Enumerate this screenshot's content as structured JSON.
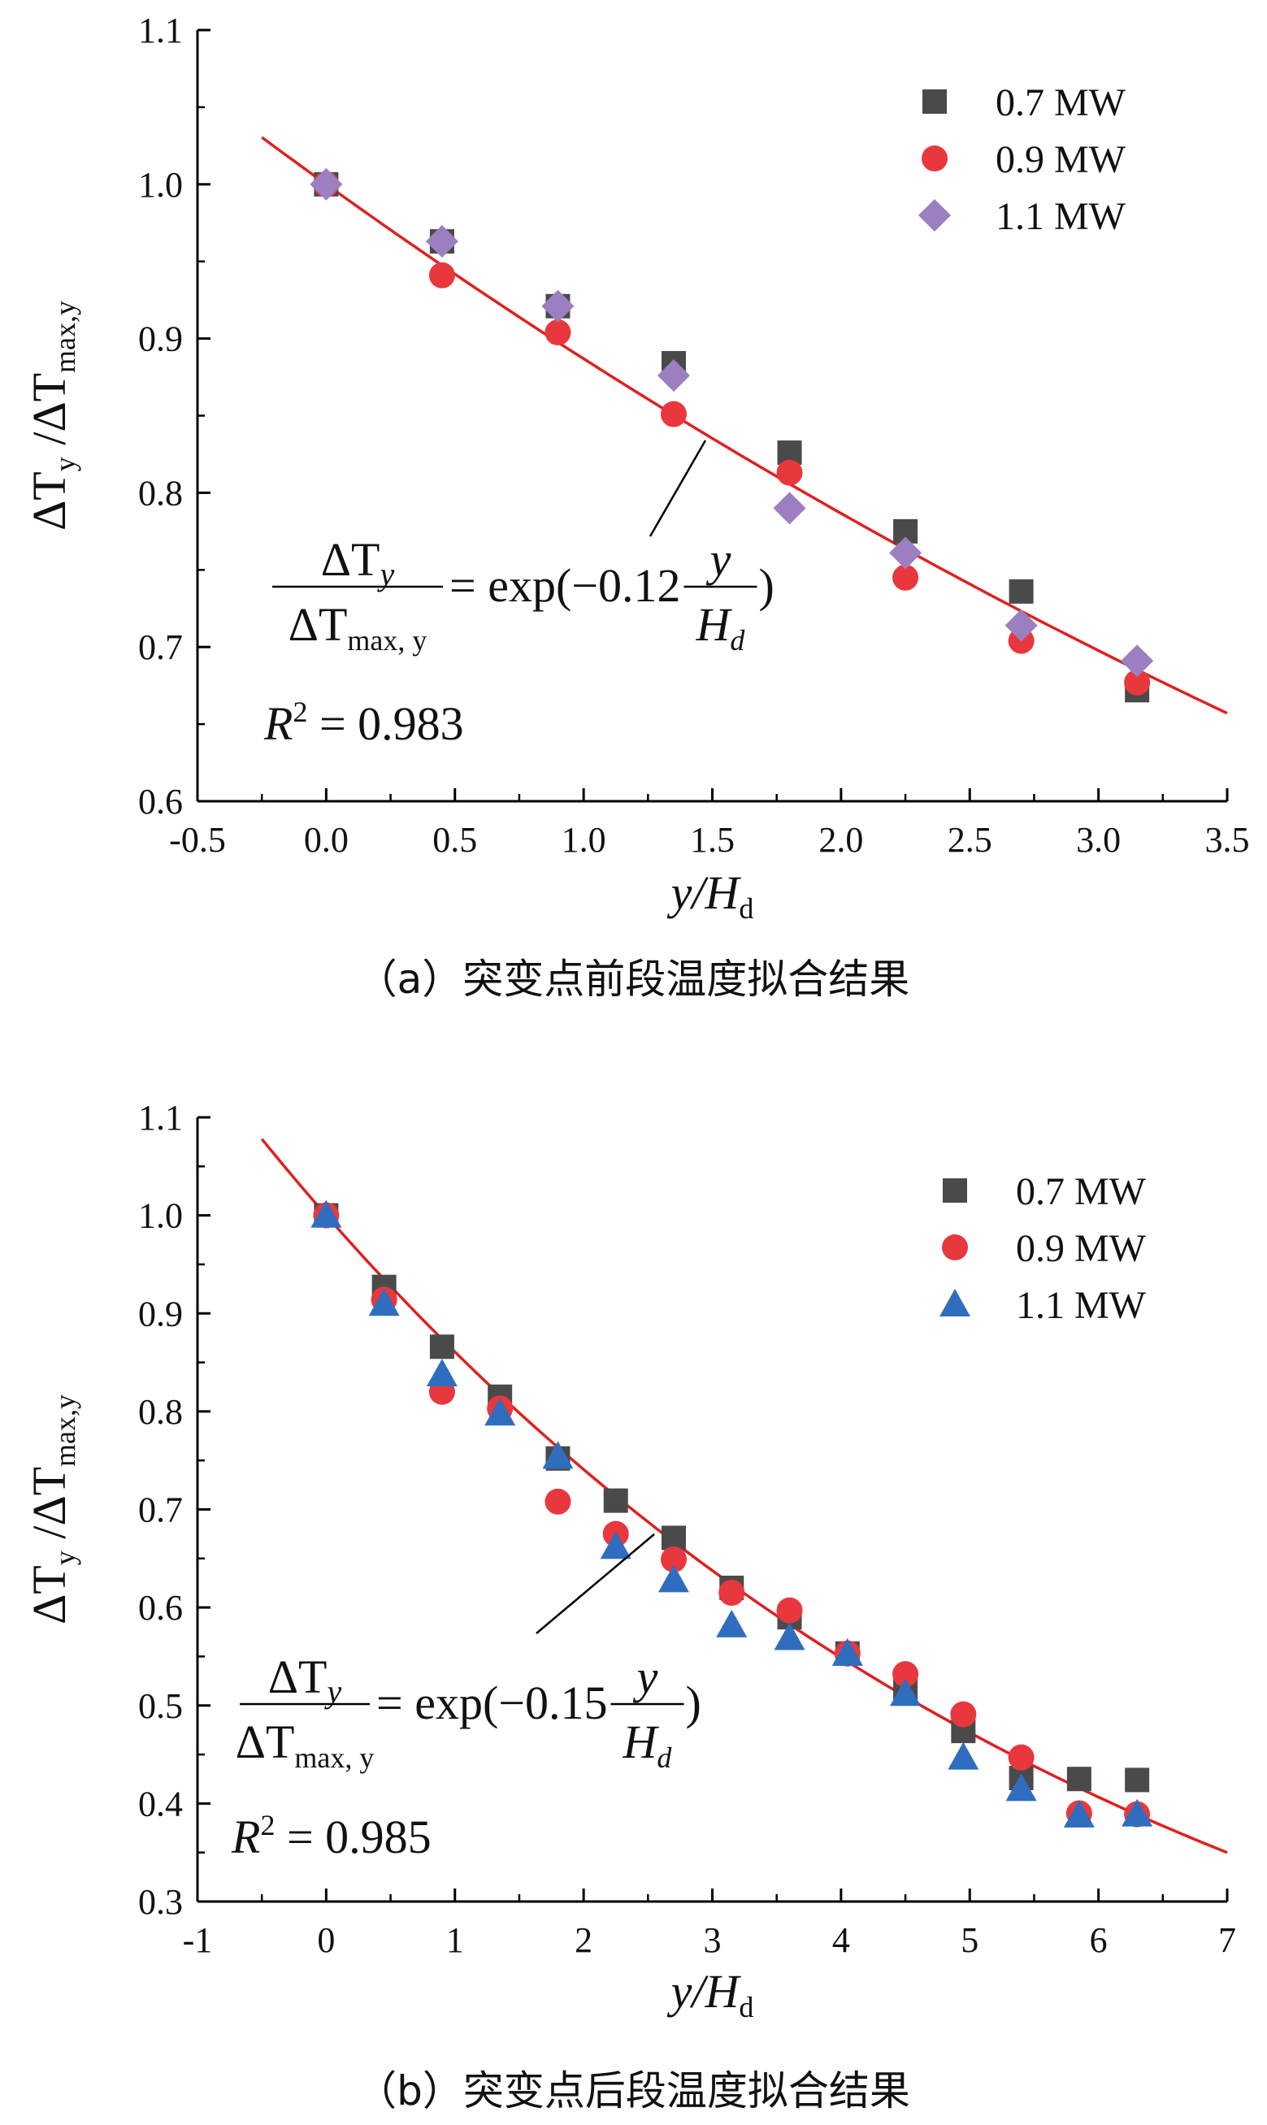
{
  "chart_data": [
    {
      "type": "scatter",
      "caption": "（a）突变点前段温度拟合结果",
      "xlabel": {
        "main": "y/H",
        "sub": "d"
      },
      "ylabel": {
        "main": "ΔT",
        "sub1": "y",
        "mid": " /ΔT",
        "sub2": "max,y"
      },
      "xlim": [
        -0.5,
        3.5
      ],
      "ylim": [
        0.6,
        1.1
      ],
      "xticks": [
        -0.5,
        0.0,
        0.5,
        1.0,
        1.5,
        2.0,
        2.5,
        3.0,
        3.5
      ],
      "xtick_labels": [
        "-0.5",
        "0.0",
        "0.5",
        "1.0",
        "1.5",
        "2.0",
        "2.5",
        "3.0",
        "3.5"
      ],
      "yticks": [
        0.6,
        0.7,
        0.8,
        0.9,
        1.0,
        1.1
      ],
      "ytick_labels": [
        "0.6",
        "0.7",
        "0.8",
        "0.9",
        "1.0",
        "1.1"
      ],
      "legend_position": "top-right",
      "series": [
        {
          "name": "0.7 MW",
          "marker": "square",
          "color": "#4a4a4a",
          "x": [
            0.0,
            0.45,
            0.9,
            1.35,
            1.8,
            2.25,
            2.7,
            3.15
          ],
          "y": [
            1.0,
            0.963,
            0.921,
            0.884,
            0.826,
            0.775,
            0.736,
            0.672
          ]
        },
        {
          "name": "0.9 MW",
          "marker": "circle",
          "color": "#e8383d",
          "x": [
            0.0,
            0.45,
            0.9,
            1.35,
            1.8,
            2.25,
            2.7,
            3.15
          ],
          "y": [
            1.0,
            0.941,
            0.904,
            0.851,
            0.813,
            0.745,
            0.704,
            0.677
          ]
        },
        {
          "name": "1.1 MW",
          "marker": "diamond",
          "color": "#9b7fc0",
          "x": [
            0.0,
            0.45,
            0.9,
            1.35,
            1.8,
            2.25,
            2.7,
            3.15
          ],
          "y": [
            1.0,
            0.963,
            0.921,
            0.876,
            0.79,
            0.761,
            0.714,
            0.691
          ]
        }
      ],
      "fit": {
        "coef": -0.12,
        "x_range": [
          -0.25,
          3.5
        ],
        "color": "#e02020"
      },
      "equation": {
        "num_main": "ΔT",
        "num_sub": "y",
        "den_main": "ΔT",
        "den_sub": "max, y",
        "rhs_pre": "= exp(−0.12",
        "rhs_num": "y",
        "rhs_den_main": "H",
        "rhs_den_sub": "d",
        "rhs_post": ")"
      },
      "r2": {
        "label": "R",
        "sup": "2",
        "value": " = 0.983"
      }
    },
    {
      "type": "scatter",
      "caption": "（b）突变点后段温度拟合结果",
      "xlabel": {
        "main": "y/H",
        "sub": "d"
      },
      "ylabel": {
        "main": "ΔT",
        "sub1": "y",
        "mid": " /ΔT",
        "sub2": "max,y"
      },
      "xlim": [
        -1,
        7
      ],
      "ylim": [
        0.3,
        1.1
      ],
      "xticks": [
        -1,
        0,
        1,
        2,
        3,
        4,
        5,
        6,
        7
      ],
      "xtick_labels": [
        "-1",
        "0",
        "1",
        "2",
        "3",
        "4",
        "5",
        "6",
        "7"
      ],
      "yticks": [
        0.3,
        0.4,
        0.5,
        0.6,
        0.7,
        0.8,
        0.9,
        1.0,
        1.1
      ],
      "ytick_labels": [
        "0.3",
        "0.4",
        "0.5",
        "0.6",
        "0.7",
        "0.8",
        "0.9",
        "1.0",
        "1.1"
      ],
      "legend_position": "top-right",
      "series": [
        {
          "name": "0.7 MW",
          "marker": "square",
          "color": "#4a4a4a",
          "x": [
            0.0,
            0.45,
            0.9,
            1.35,
            1.8,
            2.25,
            2.7,
            3.15,
            3.6,
            4.05,
            4.5,
            4.95,
            5.4,
            5.85,
            6.3
          ],
          "y": [
            1.0,
            0.927,
            0.866,
            0.815,
            0.752,
            0.709,
            0.671,
            0.62,
            0.59,
            0.553,
            0.516,
            0.474,
            0.426,
            0.425,
            0.424
          ]
        },
        {
          "name": "0.9 MW",
          "marker": "circle",
          "color": "#e8383d",
          "x": [
            0.0,
            0.45,
            0.9,
            1.35,
            1.8,
            2.25,
            2.7,
            3.15,
            3.6,
            4.05,
            4.5,
            4.95,
            5.4,
            5.85,
            6.3
          ],
          "y": [
            1.0,
            0.914,
            0.82,
            0.803,
            0.708,
            0.675,
            0.649,
            0.615,
            0.597,
            0.553,
            0.532,
            0.491,
            0.447,
            0.39,
            0.389
          ]
        },
        {
          "name": "1.1 MW",
          "marker": "triangle",
          "color": "#2f6dbf",
          "x": [
            0.0,
            0.45,
            0.9,
            1.35,
            1.8,
            2.25,
            2.7,
            3.15,
            3.6,
            4.05,
            4.5,
            4.95,
            5.4,
            5.85,
            6.3
          ],
          "y": [
            1.0,
            0.91,
            0.838,
            0.798,
            0.754,
            0.662,
            0.628,
            0.582,
            0.569,
            0.553,
            0.512,
            0.447,
            0.415,
            0.388,
            0.389
          ]
        }
      ],
      "fit": {
        "coef": -0.15,
        "x_range": [
          -0.5,
          7.0
        ],
        "color": "#e02020"
      },
      "equation": {
        "num_main": "ΔT",
        "num_sub": "y",
        "den_main": "ΔT",
        "den_sub": "max, y",
        "rhs_pre": "= exp(−0.15",
        "rhs_num": "y",
        "rhs_den_main": "H",
        "rhs_den_sub": "d",
        "rhs_post": ")"
      },
      "r2": {
        "label": "R",
        "sup": "2",
        "value": " = 0.985"
      }
    }
  ]
}
